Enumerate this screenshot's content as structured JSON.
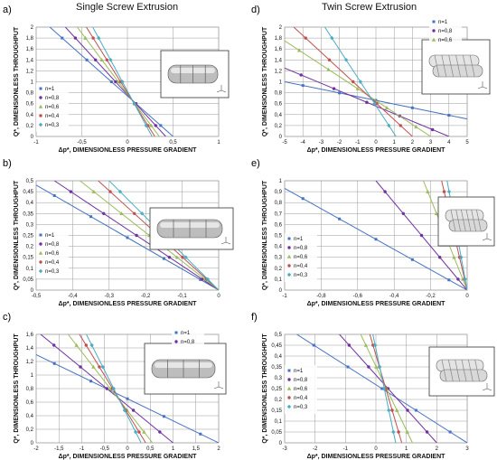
{
  "titles": {
    "left": "Single Screw Extrusion",
    "right": "Twin Screw Extrusion"
  },
  "legend_labels": [
    "n=1",
    "n=0,8",
    "n=0,6",
    "n=0,4",
    "n=0,3"
  ],
  "series_colors": [
    "#4472C4",
    "#7030A0",
    "#9BBB59",
    "#C0504D",
    "#4BACC6"
  ],
  "chart_data": [
    {
      "panel_label": "a)",
      "type": "line",
      "xlabel": "Δp*, DIMENSIONLESS  PRESSURE GRADIENT",
      "ylabel": "Q*, DIMENSIONLESS THROUGHPUT",
      "xlim": [
        -1,
        1
      ],
      "ylim": [
        0,
        2
      ],
      "xticks": [
        -1,
        -0.5,
        0,
        0.5,
        1
      ],
      "xtick_labels": [
        "-1",
        "-0,5",
        "0",
        "0,5",
        "1"
      ],
      "yticks": [
        0,
        0.2,
        0.4,
        0.6,
        0.8,
        1,
        1.2,
        1.4,
        1.6,
        1.8,
        2
      ],
      "ytick_labels": [
        "0",
        "0,2",
        "0,4",
        "0,6",
        "0,8",
        "1",
        "1,2",
        "1,4",
        "1,6",
        "1,8",
        "2"
      ],
      "legend": [
        "n=1",
        "n=0,8",
        "n=0,6",
        "n=0,4",
        "n=0,3"
      ],
      "legend_position": "left",
      "inset": "single-screw",
      "series": [
        {
          "name": "n=1",
          "x": [
            -0.85,
            0.5
          ],
          "y": [
            2.0,
            0.0
          ]
        },
        {
          "name": "n=0,8",
          "x": [
            -0.68,
            0.42
          ],
          "y": [
            2.0,
            0.0
          ]
        },
        {
          "name": "n=0,6",
          "x": [
            -0.55,
            0.35
          ],
          "y": [
            2.0,
            0.0
          ]
        },
        {
          "name": "n=0,4",
          "x": [
            -0.45,
            0.3
          ],
          "y": [
            2.0,
            0.0
          ]
        },
        {
          "name": "n=0,3",
          "x": [
            -0.38,
            0.27
          ],
          "y": [
            2.0,
            0.0
          ]
        }
      ]
    },
    {
      "panel_label": "b)",
      "type": "line",
      "xlabel": "Δp*, DIMENSIONLESS  PRESSURE GRADIENT",
      "ylabel": "Q*, DIMENSIONLESS THROUGHPUT",
      "xlim": [
        -0.5,
        0
      ],
      "ylim": [
        0,
        0.5
      ],
      "xticks": [
        -0.5,
        -0.4,
        -0.3,
        -0.2,
        -0.1,
        0
      ],
      "xtick_labels": [
        "-0,5",
        "-0,4",
        "-0,3",
        "-0,2",
        "-0,1",
        "0"
      ],
      "yticks": [
        0,
        0.05,
        0.1,
        0.15,
        0.2,
        0.25,
        0.3,
        0.35,
        0.4,
        0.45,
        0.5
      ],
      "ytick_labels": [
        "0",
        "0,05",
        "0,1",
        "0,15",
        "0,2",
        "0,25",
        "0,3",
        "0,35",
        "0,4",
        "0,45",
        "0,5"
      ],
      "legend": [
        "n=1",
        "n=0,8",
        "n=0,6",
        "n=0,4",
        "n=0,3"
      ],
      "legend_position": "left",
      "inset": "single-screw-pins",
      "series": [
        {
          "name": "n=1",
          "x": [
            -0.5,
            0
          ],
          "y": [
            0.48,
            0.0
          ]
        },
        {
          "name": "n=0,8",
          "x": [
            -0.45,
            0
          ],
          "y": [
            0.5,
            0.0
          ]
        },
        {
          "name": "n=0,6",
          "x": [
            -0.38,
            0
          ],
          "y": [
            0.5,
            0.0
          ]
        },
        {
          "name": "n=0,4",
          "x": [
            -0.33,
            0
          ],
          "y": [
            0.5,
            0.0
          ]
        },
        {
          "name": "n=0,3",
          "x": [
            -0.3,
            0
          ],
          "y": [
            0.5,
            0.0
          ]
        }
      ]
    },
    {
      "panel_label": "c)",
      "type": "line",
      "xlabel": "Δp*, DIMENSIONLESS  PRESSURE GRADIENT",
      "ylabel": "Q*, DIMENSIONLESS THROUGHPUT",
      "xlim": [
        -2,
        2
      ],
      "ylim": [
        0,
        1.6
      ],
      "xticks": [
        -2,
        -1.5,
        -1,
        -0.5,
        0,
        0.5,
        1,
        1.5,
        2
      ],
      "xtick_labels": [
        "-2",
        "-1,5",
        "-1",
        "-0,5",
        "0",
        "0,5",
        "1",
        "1,5",
        "2"
      ],
      "yticks": [
        0,
        0.2,
        0.4,
        0.6,
        0.8,
        1,
        1.2,
        1.4,
        1.6
      ],
      "ytick_labels": [
        "0",
        "0,2",
        "0,4",
        "0,6",
        "0,8",
        "1",
        "1,2",
        "1,4",
        "1,6"
      ],
      "legend": [
        "n=1",
        "n=0,8"
      ],
      "legend_position": "top-right",
      "inset": "single-screw-mixing",
      "series": [
        {
          "name": "n=1",
          "x": [
            -2,
            2
          ],
          "y": [
            1.3,
            0.0
          ]
        },
        {
          "name": "n=0,8",
          "x": [
            -1.9,
            1.0
          ],
          "y": [
            1.6,
            0.0
          ]
        },
        {
          "name": "n=0,6",
          "x": [
            -1.3,
            0.55
          ],
          "y": [
            1.6,
            0.0
          ]
        },
        {
          "name": "n=0,4",
          "x": [
            -1.05,
            0.4
          ],
          "y": [
            1.6,
            0.0
          ]
        },
        {
          "name": "n=0,3",
          "x": [
            -0.9,
            0.3
          ],
          "y": [
            1.6,
            0.0
          ]
        }
      ]
    },
    {
      "panel_label": "d)",
      "type": "line",
      "xlabel": "Δp*, DIMENSIONLESS  PRESSURE GRADIENT",
      "ylabel": "Q*, DIMENSIONLESS THROUGHPUT",
      "xlim": [
        -5,
        5
      ],
      "ylim": [
        0,
        2
      ],
      "xticks": [
        -5,
        -4,
        -3,
        -2,
        -1,
        0,
        1,
        2,
        3,
        4,
        5
      ],
      "xtick_labels": [
        "-5",
        "-4",
        "-3",
        "-2",
        "-1",
        "0",
        "1",
        "2",
        "3",
        "4",
        "5"
      ],
      "yticks": [
        0,
        0.2,
        0.4,
        0.6,
        0.8,
        1,
        1.2,
        1.4,
        1.6,
        1.8,
        2
      ],
      "ytick_labels": [
        "0",
        "0,2",
        "0,4",
        "0,6",
        "0,8",
        "1",
        "1,2",
        "1,4",
        "1,6",
        "1,8",
        "2"
      ],
      "legend": [
        "n=1",
        "n=0,8",
        "n=0,6"
      ],
      "legend_position": "top-right",
      "inset": "twin-screw-conveying",
      "series": [
        {
          "name": "n=1",
          "x": [
            -5,
            5
          ],
          "y": [
            1.0,
            0.32
          ]
        },
        {
          "name": "n=0,8",
          "x": [
            -5,
            4.0
          ],
          "y": [
            1.25,
            0.0
          ]
        },
        {
          "name": "n=0,6",
          "x": [
            -5,
            3.0
          ],
          "y": [
            1.75,
            0.0
          ]
        },
        {
          "name": "n=0,4",
          "x": [
            -4.5,
            2.0
          ],
          "y": [
            2.0,
            0.0
          ]
        },
        {
          "name": "n=0,3",
          "x": [
            -2.8,
            1.1
          ],
          "y": [
            2.0,
            0.0
          ]
        }
      ]
    },
    {
      "panel_label": "e)",
      "type": "line",
      "xlabel": "Δp*, DIMENSIONLESS  PRESSURE GRADIENT",
      "ylabel": "Q*, DIMENSIONLESS THROUGHPUT",
      "xlim": [
        -1,
        0
      ],
      "ylim": [
        0,
        1
      ],
      "xticks": [
        -1,
        -0.8,
        -0.6,
        -0.4,
        -0.2,
        0
      ],
      "xtick_labels": [
        "-1",
        "-0,8",
        "-0,6",
        "-0,4",
        "-0,2",
        "0"
      ],
      "yticks": [
        0,
        0.1,
        0.2,
        0.3,
        0.4,
        0.5,
        0.6,
        0.7,
        0.8,
        0.9,
        1
      ],
      "ytick_labels": [
        "0",
        "0,1",
        "0,2",
        "0,3",
        "0,4",
        "0,5",
        "0,6",
        "0,7",
        "0,8",
        "0,9",
        "1"
      ],
      "legend": [
        "n=1",
        "n=0,8",
        "n=0,6",
        "n=0,4",
        "n=0,3"
      ],
      "legend_position": "left",
      "inset": "twin-screw-kneading",
      "series": [
        {
          "name": "n=1",
          "x": [
            -1,
            0
          ],
          "y": [
            0.93,
            0.0
          ]
        },
        {
          "name": "n=0,8",
          "x": [
            -0.5,
            0
          ],
          "y": [
            1.0,
            0.0
          ]
        },
        {
          "name": "n=0,6",
          "x": [
            -0.24,
            0
          ],
          "y": [
            1.0,
            0.0
          ]
        },
        {
          "name": "n=0,4",
          "x": [
            -0.14,
            0
          ],
          "y": [
            1.0,
            0.0
          ]
        },
        {
          "name": "n=0,3",
          "x": [
            -0.11,
            0
          ],
          "y": [
            1.0,
            0.0
          ]
        }
      ]
    },
    {
      "panel_label": "f)",
      "type": "line",
      "xlabel": "Δp*, DIMENSIONLESS  PRESSURE GRADIENT",
      "ylabel": "Q*, DIMENSIONLESS THROUGHPUT",
      "xlim": [
        -3,
        3
      ],
      "ylim": [
        0,
        0.5
      ],
      "xticks": [
        -3,
        -2,
        -1,
        0,
        1,
        2,
        3
      ],
      "xtick_labels": [
        "-3",
        "-2",
        "-1",
        "0",
        "1",
        "2",
        "3"
      ],
      "yticks": [
        0,
        0.05,
        0.1,
        0.15,
        0.2,
        0.25,
        0.3,
        0.35,
        0.4,
        0.45,
        0.5
      ],
      "ytick_labels": [
        "0",
        "0,05",
        "0,1",
        "0,15",
        "0,2",
        "0,25",
        "0,3",
        "0,35",
        "0,4",
        "0,45",
        "0,5"
      ],
      "legend": [
        "n=1",
        "n=0,8",
        "n=0,6",
        "n=0,4",
        "n=0,3"
      ],
      "legend_position": "left",
      "inset": "twin-screw-mixing",
      "series": [
        {
          "name": "n=1",
          "x": [
            -2.6,
            3.0
          ],
          "y": [
            0.5,
            0.0
          ]
        },
        {
          "name": "n=0,8",
          "x": [
            -1.2,
            2.0
          ],
          "y": [
            0.5,
            0.0
          ]
        },
        {
          "name": "n=0,6",
          "x": [
            -0.5,
            1.2
          ],
          "y": [
            0.5,
            0.0
          ]
        },
        {
          "name": "n=0,4",
          "x": [
            -0.2,
            0.85
          ],
          "y": [
            0.5,
            0.0
          ]
        },
        {
          "name": "n=0,3",
          "x": [
            -0.1,
            0.65
          ],
          "y": [
            0.5,
            0.0
          ]
        }
      ]
    }
  ]
}
